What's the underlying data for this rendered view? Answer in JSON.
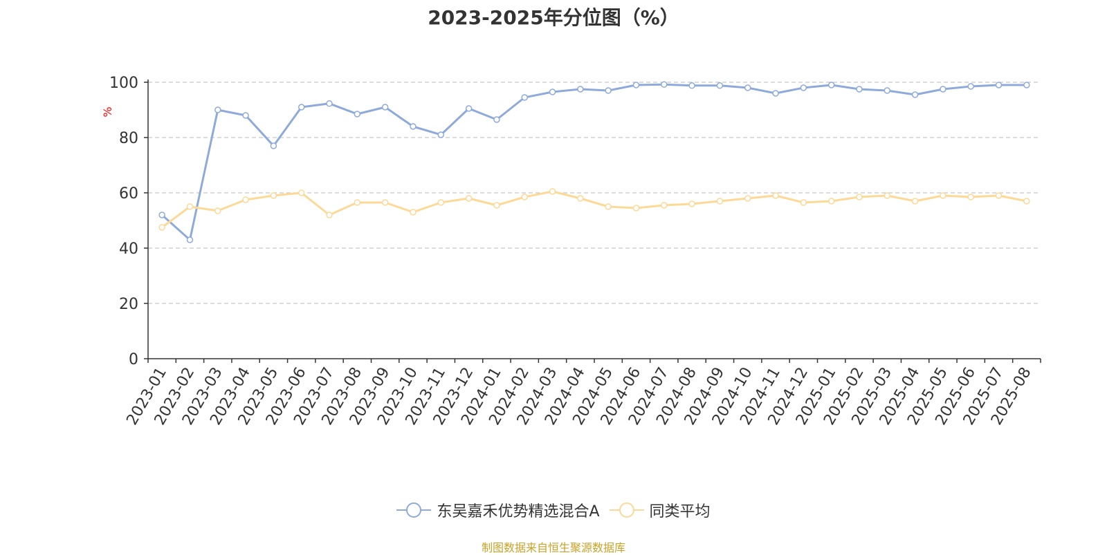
{
  "chart_data": {
    "type": "line",
    "title": "2023-2025年分位图（%）",
    "ylabel": "%",
    "ylim": [
      0,
      100
    ],
    "yticks": [
      0,
      20,
      40,
      60,
      80,
      100
    ],
    "grid": true,
    "legend_position": "bottom",
    "categories": [
      "2023-01",
      "2023-02",
      "2023-03",
      "2023-04",
      "2023-05",
      "2023-06",
      "2023-07",
      "2023-08",
      "2023-09",
      "2023-10",
      "2023-11",
      "2023-12",
      "2024-01",
      "2024-02",
      "2024-03",
      "2024-04",
      "2024-05",
      "2024-06",
      "2024-07",
      "2024-08",
      "2024-09",
      "2024-10",
      "2024-11",
      "2024-12",
      "2025-01",
      "2025-02",
      "2025-03",
      "2025-04",
      "2025-05",
      "2025-06",
      "2025-07",
      "2025-08"
    ],
    "series": [
      {
        "name": "东吴嘉禾优势精选混合A",
        "color": "#8eaadb",
        "values": [
          52,
          43,
          90,
          88,
          77,
          91,
          92.3,
          88.5,
          91,
          84,
          81,
          90.5,
          86.5,
          94.5,
          96.5,
          97.5,
          97,
          99,
          99.2,
          98.8,
          98.8,
          98,
          96,
          98,
          99,
          97.5,
          97,
          95.5,
          97.5,
          98.5,
          99,
          99
        ]
      },
      {
        "name": "同类平均",
        "color": "#fcd996",
        "values": [
          47.5,
          55,
          53.5,
          57.5,
          59,
          60,
          52,
          56.5,
          56.5,
          53,
          56.5,
          58,
          55.5,
          58.5,
          60.5,
          58,
          55,
          54.5,
          55.5,
          56,
          57,
          58,
          59,
          56.5,
          57,
          58.5,
          59,
          57,
          59,
          58.5,
          59,
          57
        ]
      }
    ]
  },
  "source_note": "制图数据来自恒生聚源数据库"
}
